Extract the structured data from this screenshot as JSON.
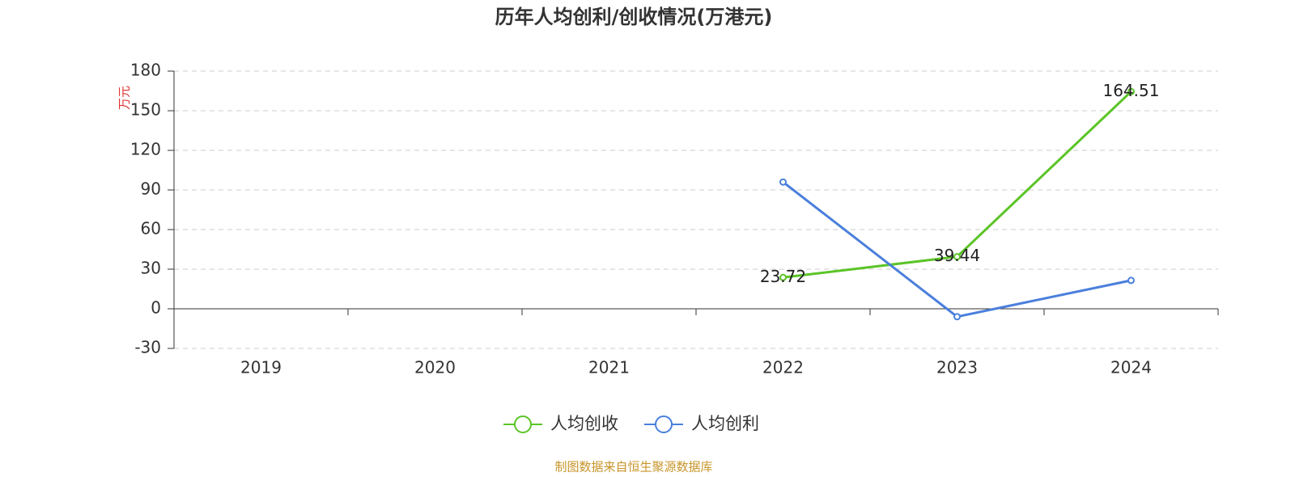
{
  "chart_data": {
    "type": "line",
    "title": "历年人均创利/创收情况(万港元)",
    "y_label": "万元",
    "source": "制图数据来自恒生聚源数据库",
    "categories": [
      "2019",
      "2020",
      "2021",
      "2022",
      "2023",
      "2024"
    ],
    "series": [
      {
        "name": "人均创收",
        "color": "#5bc427",
        "labels": true,
        "values": [
          null,
          null,
          null,
          23.72,
          39.44,
          164.51
        ]
      },
      {
        "name": "人均创利",
        "color": "#4a7fdc",
        "labels": false,
        "values": [
          null,
          null,
          null,
          96,
          -6,
          21.5
        ]
      }
    ],
    "ylim": [
      -30,
      180
    ],
    "yticks": [
      -30,
      0,
      30,
      60,
      90,
      120,
      150,
      180
    ],
    "grid": true
  }
}
